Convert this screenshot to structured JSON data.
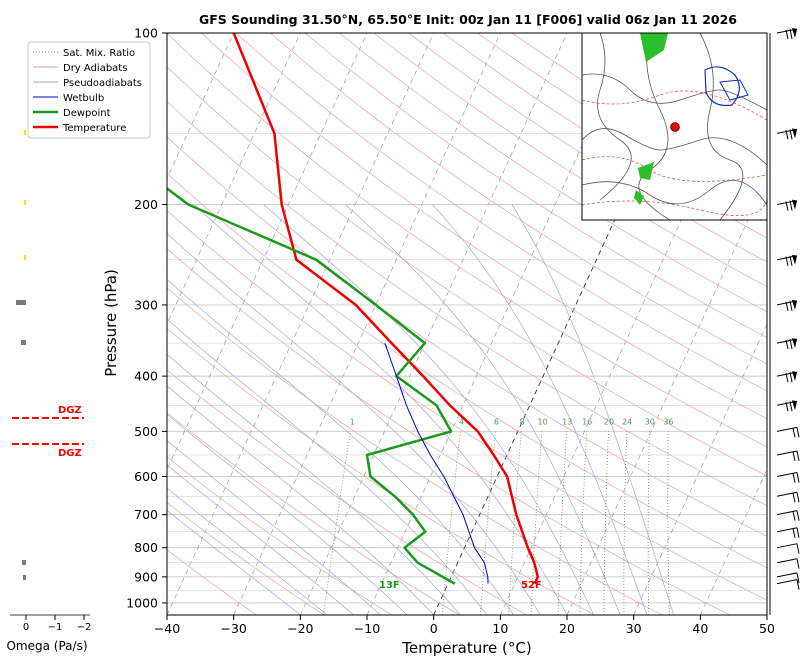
{
  "title": "GFS Sounding 31.50°N, 65.50°E Init: 00z Jan 11 [F006] valid 06z Jan 11 2026",
  "chart_data": {
    "type": "skew-t",
    "xlabel": "Temperature (°C)",
    "ylabel": "Pressure (hPa)",
    "xlim": [
      -40,
      50
    ],
    "ylim": [
      1050,
      100
    ],
    "y_scale": "log",
    "x_ticks": [
      "−40",
      "−30",
      "−20",
      "−10",
      "0",
      "10",
      "20",
      "30",
      "40",
      "50"
    ],
    "y_ticks": [
      "100",
      "200",
      "300",
      "400",
      "500",
      "600",
      "700",
      "800",
      "900",
      "1000"
    ],
    "legend": {
      "placement": "top-left",
      "entries": [
        {
          "label": "Sat. Mix. Ratio",
          "color": "#6a9a6a",
          "style": "dotted"
        },
        {
          "label": "Dry Adiabats",
          "color": "#d9a0a0",
          "style": "solid"
        },
        {
          "label": "Pseudoadiabats",
          "color": "#a0a0d0",
          "style": "solid"
        },
        {
          "label": "Wetbulb",
          "color": "#0000cc",
          "style": "solid"
        },
        {
          "label": "Dewpoint",
          "color": "#1a9a1a",
          "style": "solid"
        },
        {
          "label": "Temperature",
          "color": "#ee0000",
          "style": "solid"
        }
      ]
    },
    "series": [
      {
        "name": "Temperature",
        "color": "#ee0000",
        "points": [
          [
            925,
            13
          ],
          [
            900,
            13
          ],
          [
            850,
            11.5
          ],
          [
            800,
            9.5
          ],
          [
            700,
            5.5
          ],
          [
            600,
            1.5
          ],
          [
            550,
            -2
          ],
          [
            500,
            -6
          ],
          [
            450,
            -12
          ],
          [
            400,
            -18
          ],
          [
            350,
            -25
          ],
          [
            300,
            -33
          ],
          [
            250,
            -45
          ],
          [
            200,
            -51
          ],
          [
            150,
            -57
          ],
          [
            100,
            -70
          ]
        ]
      },
      {
        "name": "Dewpoint",
        "color": "#1a9a1a",
        "points": [
          [
            925,
            1
          ],
          [
            850,
            -6
          ],
          [
            800,
            -9
          ],
          [
            750,
            -7
          ],
          [
            700,
            -10
          ],
          [
            650,
            -14
          ],
          [
            600,
            -19
          ],
          [
            550,
            -21
          ],
          [
            500,
            -10
          ],
          [
            450,
            -14
          ],
          [
            400,
            -22
          ],
          [
            350,
            -20
          ],
          [
            300,
            -30
          ],
          [
            250,
            -42
          ],
          [
            200,
            -65
          ],
          [
            150,
            -84
          ],
          [
            100,
            -90
          ]
        ]
      },
      {
        "name": "Wetbulb",
        "color": "#0000cc",
        "points": [
          [
            925,
            6
          ],
          [
            900,
            5.5
          ],
          [
            850,
            4
          ],
          [
            800,
            1.5
          ],
          [
            700,
            -2.5
          ],
          [
            600,
            -8
          ],
          [
            550,
            -11.5
          ],
          [
            500,
            -15
          ],
          [
            450,
            -18.5
          ],
          [
            400,
            -22
          ],
          [
            350,
            -26
          ]
        ]
      }
    ],
    "mixing_ratio_labels": [
      "1",
      "4",
      "6",
      "8",
      "10",
      "13",
      "16",
      "20",
      "24",
      "30",
      "36"
    ],
    "surface_labels": {
      "dewpoint": "13F",
      "temperature": "52F"
    }
  },
  "omega": {
    "label": "Omega (Pa/s)",
    "ticks": [
      "0",
      "−1",
      "−2"
    ],
    "dgz_label_top": "DGZ",
    "dgz_label_bottom": "DGZ"
  },
  "colors": {
    "temperature": "#ee0000",
    "dewpoint": "#1a9a1a",
    "wetbulb": "#0000cc",
    "dgz": "#ff0000"
  }
}
